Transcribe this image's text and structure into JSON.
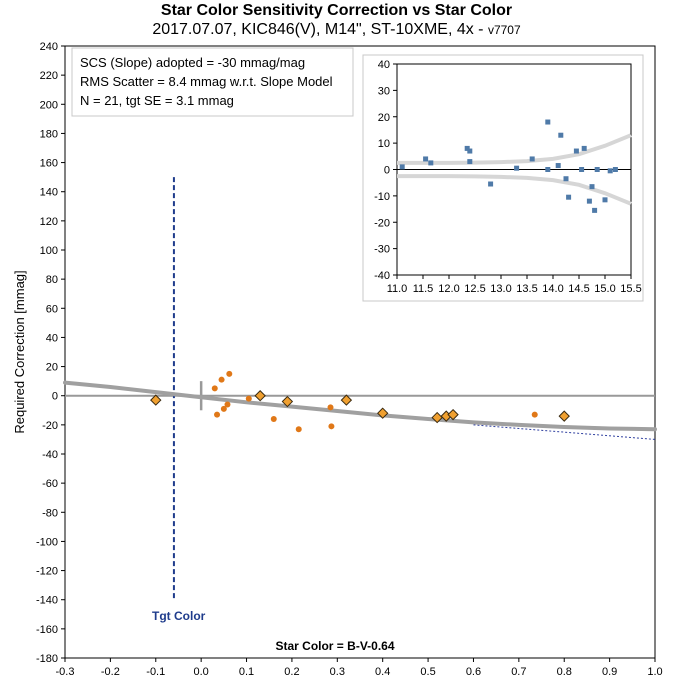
{
  "chart_data": [
    {
      "type": "scatter",
      "title": "Star Color Sensitivity Correction vs Star Color",
      "subtitle": "2017.07.07, KIC846(V), M14\", ST-10XME, 4x - ",
      "version": "v7707",
      "xlabel": "Star Color = B-V-0.64",
      "ylabel": "Required Correction [mmag]",
      "xlim": [
        -0.3,
        1.0
      ],
      "ylim": [
        -180,
        240
      ],
      "x_ticks": [
        -0.3,
        -0.2,
        -0.1,
        0.0,
        0.1,
        0.2,
        0.3,
        0.4,
        0.5,
        0.6,
        0.7,
        0.8,
        0.9,
        1.0
      ],
      "x_tick_labels": [
        "-0.3",
        "-0.2",
        "-0.1",
        "0.0",
        "0.1",
        "0.2",
        "0.3",
        "0.4",
        "0.5",
        "0.6",
        "0.7",
        "0.8",
        "0.9",
        "1.0"
      ],
      "y_ticks": [
        240,
        220,
        200,
        180,
        160,
        140,
        120,
        100,
        80,
        60,
        40,
        20,
        0,
        -20,
        -40,
        -60,
        -80,
        -100,
        -120,
        -140,
        -160,
        -180
      ],
      "grid": false,
      "annotations": {
        "slope_line": "SCS (Slope) adopted  =  -30 mmag/mag",
        "rms_line": "RMS Scatter = 8.4 mmag w.r.t. Slope Model",
        "n_line": "N = 21,  tgt SE = 3.1 mmag",
        "tgt_label": "Tgt Color"
      },
      "target_color": -0.06,
      "target_line_range": [
        -140,
        150
      ],
      "series": [
        {
          "marker": "diamond",
          "color": "#f0a030",
          "points": [
            [
              -0.1,
              -3
            ],
            [
              0.13,
              0
            ],
            [
              0.19,
              -4
            ],
            [
              0.32,
              -3
            ],
            [
              0.4,
              -12
            ],
            [
              0.52,
              -15
            ],
            [
              0.54,
              -14
            ],
            [
              0.555,
              -13
            ],
            [
              0.8,
              -14
            ]
          ]
        },
        {
          "marker": "circle",
          "color": "#e07818",
          "points": [
            [
              0.03,
              5
            ],
            [
              0.035,
              -13
            ],
            [
              0.045,
              11
            ],
            [
              0.05,
              -9
            ],
            [
              0.058,
              -6
            ],
            [
              0.062,
              15
            ],
            [
              0.105,
              -2
            ],
            [
              0.16,
              -16
            ],
            [
              0.215,
              -23
            ],
            [
              0.285,
              -8
            ],
            [
              0.287,
              -21
            ],
            [
              0.735,
              -13
            ]
          ]
        }
      ],
      "model_curve": [
        [
          -0.3,
          9
        ],
        [
          -0.2,
          6
        ],
        [
          -0.1,
          2.5
        ],
        [
          0.0,
          -1
        ],
        [
          0.1,
          -4.5
        ],
        [
          0.2,
          -7.5
        ],
        [
          0.3,
          -10.5
        ],
        [
          0.4,
          -13.5
        ],
        [
          0.5,
          -16
        ],
        [
          0.6,
          -18.3
        ],
        [
          0.7,
          -20
        ],
        [
          0.8,
          -21.5
        ],
        [
          0.9,
          -22.5
        ],
        [
          1.0,
          -23
        ]
      ],
      "slope_line_range": [
        [
          0.6,
          -20
        ],
        [
          1.0,
          -30
        ]
      ]
    },
    {
      "type": "scatter",
      "title": "",
      "xlim": [
        11.0,
        15.5
      ],
      "ylim": [
        -40,
        40
      ],
      "x_ticks": [
        11.0,
        11.5,
        12.0,
        12.5,
        13.0,
        13.5,
        14.0,
        14.5,
        15.0,
        15.5
      ],
      "x_tick_labels": [
        "11.0",
        "11.5",
        "12.0",
        "12.5",
        "13.0",
        "13.5",
        "14.0",
        "14.5",
        "15.0",
        "15.5"
      ],
      "y_ticks": [
        40,
        30,
        20,
        10,
        0,
        -10,
        -20,
        -30,
        -40
      ],
      "points": [
        [
          11.1,
          1
        ],
        [
          11.55,
          4
        ],
        [
          11.65,
          2.5
        ],
        [
          12.35,
          8
        ],
        [
          12.4,
          7
        ],
        [
          12.4,
          3
        ],
        [
          12.8,
          -5.5
        ],
        [
          13.3,
          0.5
        ],
        [
          13.6,
          4
        ],
        [
          13.9,
          18
        ],
        [
          13.9,
          0
        ],
        [
          14.1,
          1.5
        ],
        [
          14.15,
          13
        ],
        [
          14.25,
          -3.5
        ],
        [
          14.3,
          -10.5
        ],
        [
          14.45,
          7
        ],
        [
          14.55,
          0
        ],
        [
          14.6,
          8
        ],
        [
          14.7,
          -12
        ],
        [
          14.75,
          -6.5
        ],
        [
          14.8,
          -15.5
        ],
        [
          14.85,
          0
        ],
        [
          15.0,
          -11.5
        ],
        [
          15.1,
          -0.5
        ],
        [
          15.2,
          0
        ]
      ],
      "envelope_upper": [
        [
          11.0,
          2.5
        ],
        [
          11.5,
          2.5
        ],
        [
          12.0,
          2.5
        ],
        [
          12.5,
          2.6
        ],
        [
          13.0,
          2.8
        ],
        [
          13.5,
          3.2
        ],
        [
          14.0,
          4
        ],
        [
          14.5,
          5.8
        ],
        [
          15.0,
          9
        ],
        [
          15.5,
          13
        ]
      ],
      "envelope_lower": [
        [
          11.0,
          -2.5
        ],
        [
          11.5,
          -2.5
        ],
        [
          12.0,
          -2.5
        ],
        [
          12.5,
          -2.6
        ],
        [
          13.0,
          -2.8
        ],
        [
          13.5,
          -3.2
        ],
        [
          14.0,
          -4
        ],
        [
          14.5,
          -5.8
        ],
        [
          15.0,
          -9
        ],
        [
          15.5,
          -13
        ]
      ],
      "point_color": "#4f7aa8"
    }
  ]
}
